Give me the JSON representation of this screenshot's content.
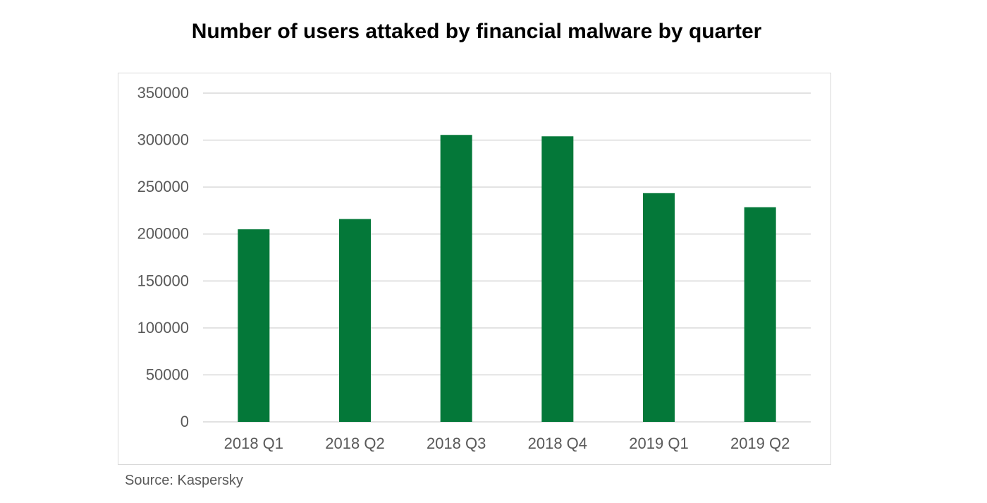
{
  "chart_data": {
    "type": "bar",
    "title": "Number of users attaked by financial malware by quarter",
    "categories": [
      "2018 Q1",
      "2018 Q2",
      "2018 Q3",
      "2018 Q4",
      "2019 Q1",
      "2019 Q2"
    ],
    "values": [
      205000,
      216000,
      305500,
      304000,
      243500,
      228500
    ],
    "xlabel": "",
    "ylabel": "",
    "ylim": [
      0,
      350000
    ],
    "yticks": [
      0,
      50000,
      100000,
      150000,
      200000,
      250000,
      300000,
      350000
    ],
    "grid": true,
    "legend": "none",
    "bar_color": "#047839",
    "grid_color": "#d9d9d9",
    "axis_text_color": "#595959"
  },
  "source": "Source: Kaspersky"
}
